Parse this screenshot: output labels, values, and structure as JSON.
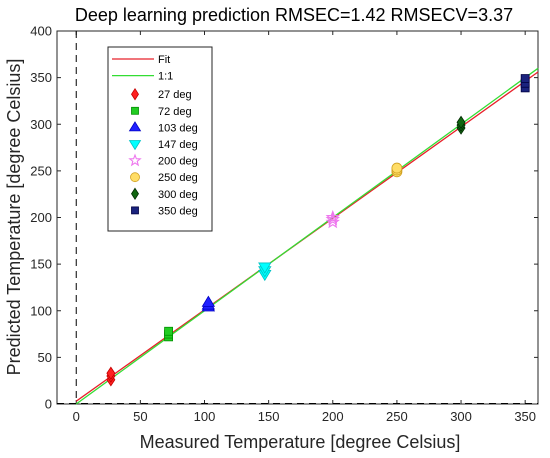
{
  "chart_data": {
    "type": "scatter",
    "title": "Deep learning prediction RMSEC=1.42 RMSECV=3.37",
    "xlabel": "Measured Temperature [degree Celsius]",
    "ylabel": "Predicted Temperature [degree Celsius]",
    "xlim": [
      -15,
      360
    ],
    "ylim": [
      0,
      400
    ],
    "xticks": [
      0,
      50,
      100,
      150,
      200,
      250,
      300,
      350
    ],
    "yticks": [
      0,
      50,
      100,
      150,
      200,
      250,
      300,
      350,
      400
    ],
    "grid": false,
    "legend_position": "top-left",
    "lines": [
      {
        "name": "Fit",
        "color": "#e8202a",
        "x": [
          0,
          360
        ],
        "y": [
          3,
          356
        ]
      },
      {
        "name": "1:1",
        "color": "#33dd33",
        "x": [
          0,
          360
        ],
        "y": [
          0,
          360
        ]
      }
    ],
    "reference_line": {
      "x": 0,
      "style": "dashed",
      "color": "#000000"
    },
    "series": [
      {
        "name": "27 deg",
        "marker": "diamond",
        "color": "#ff2020",
        "x": [
          27,
          27,
          27
        ],
        "y": [
          26,
          30,
          33
        ]
      },
      {
        "name": "72 deg",
        "marker": "square",
        "color": "#22cc22",
        "x": [
          72,
          72,
          72
        ],
        "y": [
          72,
          75,
          78
        ]
      },
      {
        "name": "103 deg",
        "marker": "triangle-up",
        "color": "#2020ff",
        "x": [
          103,
          103,
          103
        ],
        "y": [
          104,
          106,
          109
        ]
      },
      {
        "name": "147 deg",
        "marker": "triangle-down",
        "color": "#00ffff",
        "x": [
          147,
          147,
          147
        ],
        "y": [
          139,
          143,
          147
        ]
      },
      {
        "name": "200 deg",
        "marker": "star",
        "color": "#ee77ee",
        "x": [
          200,
          200,
          200
        ],
        "y": [
          195,
          198,
          200
        ]
      },
      {
        "name": "250 deg",
        "marker": "circle",
        "color": "#ffdd66",
        "x": [
          250,
          250,
          250
        ],
        "y": [
          249,
          251,
          253
        ]
      },
      {
        "name": "300 deg",
        "marker": "diamond",
        "color": "#116611",
        "x": [
          300,
          300,
          300
        ],
        "y": [
          296,
          299,
          302
        ]
      },
      {
        "name": "350 deg",
        "marker": "square",
        "color": "#1a237e",
        "x": [
          350,
          350,
          350
        ],
        "y": [
          339,
          344,
          349
        ]
      }
    ]
  }
}
